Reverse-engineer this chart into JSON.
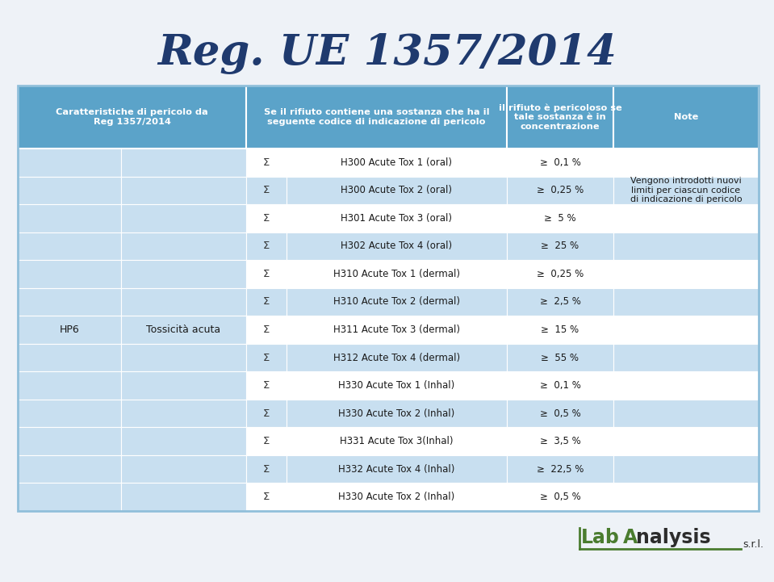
{
  "title": "Reg. UE 1357/2014",
  "title_color": "#1F3A6E",
  "bg_color": "#EEF2F7",
  "header_bg": "#5BA3C9",
  "header_text_color": "#FFFFFF",
  "header_font_size": 8.2,
  "col1_header": "Caratteristiche di pericolo da\nReg 1357/2014",
  "col2_header": "Se il rifiuto contiene una sostanza che ha il\nseguente codice di indicazione di pericolo",
  "col3_header": "il rifiuto è pericoloso se\ntale sostanza è in\nconcentrazione",
  "col4_header": "Note",
  "row_bg_light": "#C8DFF0",
  "row_bg_white": "#FFFFFF",
  "col1_label": "HP6",
  "col2_label": "Tossicità acuta",
  "rows": [
    {
      "sigma": "Σ",
      "code": "H300 Acute Tox 1 (oral)",
      "conc": "≥  0,1 %"
    },
    {
      "sigma": "Σ",
      "code": "H300 Acute Tox 2 (oral)",
      "conc": "≥  0,25 %"
    },
    {
      "sigma": "Σ",
      "code": "H301 Acute Tox 3 (oral)",
      "conc": "≥  5 %"
    },
    {
      "sigma": "Σ",
      "code": "H302 Acute Tox 4 (oral)",
      "conc": "≥  25 %"
    },
    {
      "sigma": "Σ",
      "code": "H310 Acute Tox 1 (dermal)",
      "conc": "≥  0,25 %"
    },
    {
      "sigma": "Σ",
      "code": "H310 Acute Tox 2 (dermal)",
      "conc": "≥  2,5 %"
    },
    {
      "sigma": "Σ",
      "code": "H311 Acute Tox 3 (dermal)",
      "conc": "≥  15 %"
    },
    {
      "sigma": "Σ",
      "code": "H312 Acute Tox 4 (dermal)",
      "conc": "≥  55 %"
    },
    {
      "sigma": "Σ",
      "code": "H330 Acute Tox 1 (Inhal)",
      "conc": "≥  0,1 %"
    },
    {
      "sigma": "Σ",
      "code": "H330 Acute Tox 2 (Inhal)",
      "conc": "≥  0,5 %"
    },
    {
      "sigma": "Σ",
      "code": "H331 Acute Tox 3(Inhal)",
      "conc": "≥  3,5 %"
    },
    {
      "sigma": "Σ",
      "code": "H332 Acute Tox 4 (Inhal)",
      "conc": "≥  22,5 %"
    },
    {
      "sigma": "Σ",
      "code": "H330 Acute Tox 2 (Inhal)",
      "conc": "≥  0,5 %"
    }
  ],
  "note_text": "Vengono introdotti nuovi\nlimiti per ciascun codice\ndi indicazione di pericolo",
  "logo_color_green": "#4A7C2F",
  "logo_color_dark": "#2C2C2C"
}
